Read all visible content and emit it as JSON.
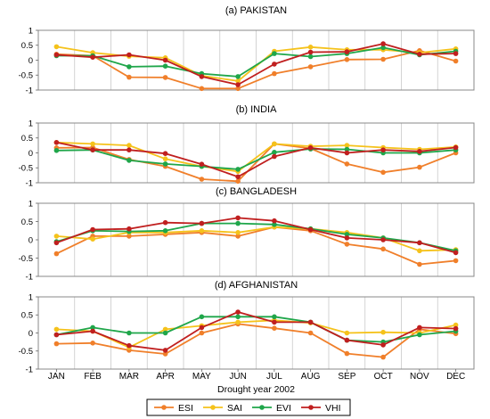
{
  "chart_data": {
    "type": "line",
    "xlabel": "Drought year 2002",
    "categories": [
      "JAN",
      "FEB",
      "MAR",
      "APR",
      "MAY",
      "JUN",
      "JUL",
      "AUG",
      "SEP",
      "OCT",
      "NOV",
      "DEC"
    ],
    "ylim": [
      -1,
      1
    ],
    "yticks": [
      "1",
      "0.5",
      "0",
      "-0.5",
      "-1"
    ],
    "grid": "vertical",
    "legend": "bottom",
    "colors": {
      "ESI": "#f07f2a",
      "SAI": "#f5c21b",
      "EVI": "#1fa64a",
      "VHI": "#c01f1f"
    },
    "series_order": [
      "ESI",
      "SAI",
      "EVI",
      "VHI"
    ],
    "panels": [
      {
        "title": "(a) PAKISTAN",
        "series": [
          {
            "name": "ESI",
            "values": [
              0.2,
              0.15,
              -0.57,
              -0.58,
              -0.95,
              -0.95,
              -0.45,
              -0.22,
              0.02,
              0.03,
              0.32,
              -0.03
            ]
          },
          {
            "name": "SAI",
            "values": [
              0.45,
              0.25,
              0.13,
              0.08,
              -0.52,
              -0.7,
              0.3,
              0.44,
              0.35,
              0.35,
              0.25,
              0.38
            ]
          },
          {
            "name": "EVI",
            "values": [
              0.15,
              0.15,
              -0.22,
              -0.2,
              -0.45,
              -0.55,
              0.22,
              0.12,
              0.22,
              0.42,
              0.18,
              0.3
            ]
          },
          {
            "name": "VHI",
            "values": [
              0.18,
              0.1,
              0.18,
              0.0,
              -0.55,
              -0.82,
              -0.13,
              0.27,
              0.28,
              0.55,
              0.2,
              0.22
            ]
          }
        ]
      },
      {
        "title": "(b) INDIA",
        "series": [
          {
            "name": "ESI",
            "values": [
              0.17,
              0.18,
              -0.22,
              -0.45,
              -0.88,
              -0.95,
              0.3,
              0.15,
              -0.37,
              -0.65,
              -0.48,
              0.0
            ]
          },
          {
            "name": "SAI",
            "values": [
              0.35,
              0.3,
              0.25,
              -0.2,
              -0.45,
              -0.62,
              0.3,
              0.22,
              0.25,
              0.18,
              0.12,
              0.2
            ]
          },
          {
            "name": "EVI",
            "values": [
              0.08,
              0.1,
              -0.25,
              -0.37,
              -0.45,
              -0.55,
              0.02,
              0.13,
              0.12,
              0.0,
              0.0,
              0.1
            ]
          },
          {
            "name": "VHI",
            "values": [
              0.35,
              0.1,
              0.1,
              -0.02,
              -0.38,
              -0.8,
              -0.12,
              0.17,
              0.0,
              0.1,
              0.05,
              0.18
            ]
          }
        ]
      },
      {
        "title": "(c) BANGLADESH",
        "series": [
          {
            "name": "ESI",
            "values": [
              -0.38,
              0.1,
              0.1,
              0.15,
              0.2,
              0.1,
              0.35,
              0.25,
              -0.12,
              -0.25,
              -0.67,
              -0.57
            ]
          },
          {
            "name": "SAI",
            "values": [
              0.1,
              0.02,
              0.2,
              0.2,
              0.25,
              0.2,
              0.35,
              0.3,
              0.2,
              0.05,
              -0.3,
              -0.27
            ]
          },
          {
            "name": "EVI",
            "values": [
              -0.05,
              0.25,
              0.23,
              0.25,
              0.45,
              0.45,
              0.42,
              0.3,
              0.15,
              0.05,
              -0.08,
              -0.3
            ]
          },
          {
            "name": "VHI",
            "values": [
              -0.08,
              0.28,
              0.3,
              0.47,
              0.45,
              0.6,
              0.52,
              0.28,
              0.05,
              0.0,
              -0.08,
              -0.35
            ]
          }
        ]
      },
      {
        "title": "(d) AFGHANISTAN",
        "series": [
          {
            "name": "ESI",
            "values": [
              -0.3,
              -0.28,
              -0.48,
              -0.58,
              0.0,
              0.25,
              0.13,
              0.0,
              -0.57,
              -0.67,
              0.1,
              -0.02
            ]
          },
          {
            "name": "SAI",
            "values": [
              0.1,
              0.05,
              -0.4,
              0.1,
              0.2,
              0.3,
              0.35,
              0.28,
              0.0,
              0.02,
              0.0,
              0.22
            ]
          },
          {
            "name": "EVI",
            "values": [
              -0.05,
              0.15,
              0.0,
              0.0,
              0.45,
              0.45,
              0.45,
              0.3,
              -0.2,
              -0.25,
              -0.05,
              0.05
            ]
          },
          {
            "name": "VHI",
            "values": [
              -0.05,
              0.05,
              -0.35,
              -0.48,
              0.15,
              0.58,
              0.3,
              0.3,
              -0.2,
              -0.33,
              0.15,
              0.12
            ]
          }
        ]
      }
    ]
  }
}
